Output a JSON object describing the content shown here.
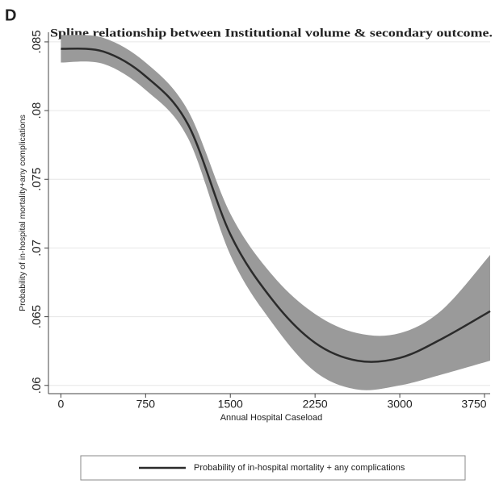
{
  "panel_label": "D",
  "chart_data": {
    "type": "line",
    "title": "Spline relationship between Institutional volume & secondary outcome.",
    "x_label": "Annual Hospital Caseload",
    "y_label": "Probability of in-hospital mortality+any complications",
    "x": [
      0,
      375,
      750,
      1125,
      1500,
      1875,
      2250,
      2625,
      3000,
      3375,
      3800
    ],
    "series": [
      {
        "name": "Probability of in-hospital mortality + any complications",
        "color": "#2b2b2b",
        "values": [
          0.0845,
          0.0843,
          0.0825,
          0.079,
          0.071,
          0.0662,
          0.0631,
          0.0618,
          0.062,
          0.0634,
          0.0654
        ],
        "ci_lower": [
          0.0835,
          0.0834,
          0.0815,
          0.078,
          0.0695,
          0.0645,
          0.061,
          0.0597,
          0.06,
          0.0608,
          0.0618
        ],
        "ci_upper": [
          0.0855,
          0.0853,
          0.0835,
          0.08,
          0.0725,
          0.068,
          0.0652,
          0.0638,
          0.0638,
          0.0655,
          0.0695
        ],
        "band_color": "#9a9a9a"
      }
    ],
    "xlim": [
      -110,
      3800
    ],
    "ylim": [
      0.0594,
      0.0857
    ],
    "xticks": [
      0,
      750,
      1500,
      2250,
      3000,
      3750
    ],
    "yticks": [
      {
        "value": 0.06,
        "label": ".06"
      },
      {
        "value": 0.065,
        "label": ".065"
      },
      {
        "value": 0.07,
        "label": ".07"
      },
      {
        "value": 0.075,
        "label": ".075"
      },
      {
        "value": 0.08,
        "label": ".08"
      },
      {
        "value": 0.085,
        "label": ".085"
      }
    ],
    "grid": true,
    "legend": "bottom"
  }
}
